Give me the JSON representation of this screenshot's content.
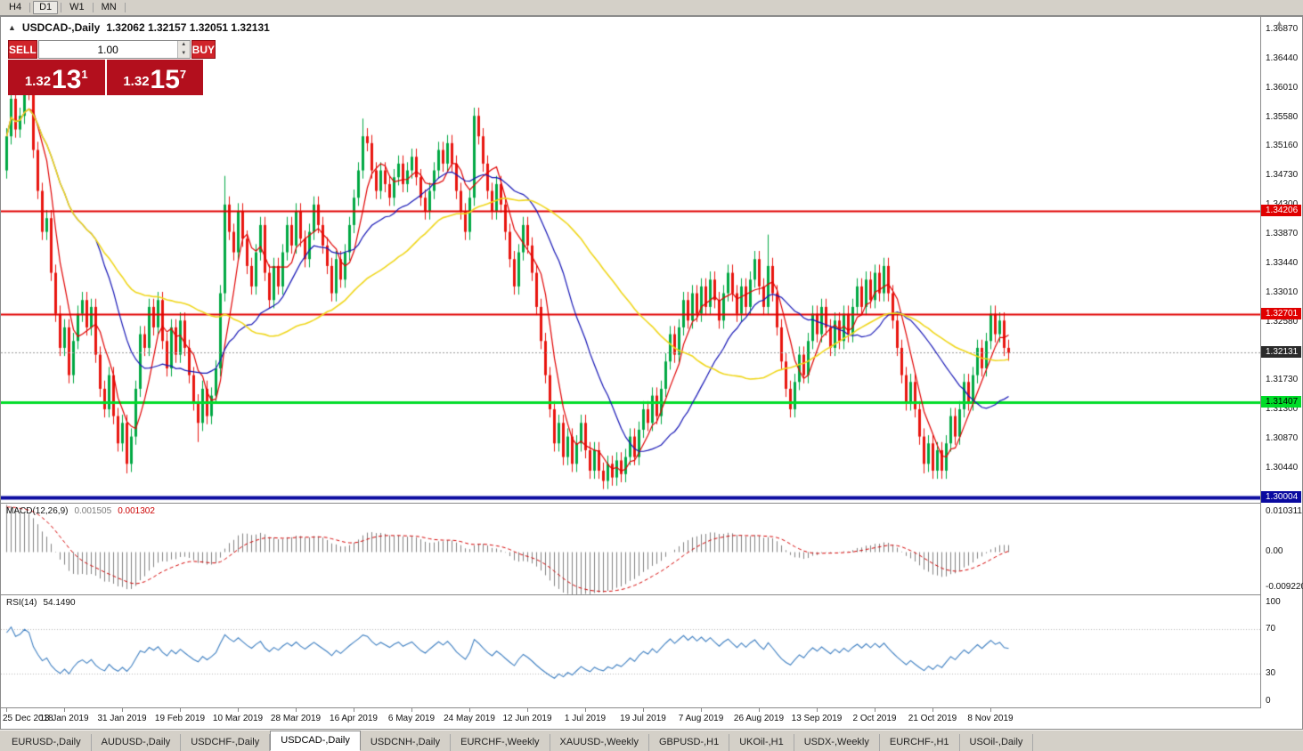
{
  "colors": {
    "app_chrome": "#d4d0c8",
    "panel_red": "#b30f1d",
    "button_red": "#d0242a"
  },
  "toolbar": {
    "timeframes": [
      {
        "label": "H4",
        "active": false
      },
      {
        "label": "D1",
        "active": true
      },
      {
        "label": "W1",
        "active": false
      },
      {
        "label": "MN",
        "active": false
      }
    ]
  },
  "icons": {
    "collapse_arrow": "▲",
    "spin_up": "▲",
    "spin_down": "▼",
    "scale_arrow": "▲"
  },
  "chart_header": {
    "symbol_title": "USDCAD-,Daily",
    "ohlc": "1.32062 1.32157 1.32051 1.32131"
  },
  "one_click": {
    "sell_label": "SELL",
    "buy_label": "BUY",
    "volume": "1.00",
    "sell_price": {
      "base": "1.32",
      "big": "13",
      "sup": "1"
    },
    "buy_price": {
      "base": "1.32",
      "big": "15",
      "sup": "7"
    }
  },
  "price_scale": {
    "ticks": [
      "1.36870",
      "1.36440",
      "1.36010",
      "1.35580",
      "1.35160",
      "1.34730",
      "1.34300",
      "1.33870",
      "1.33440",
      "1.33010",
      "1.32580",
      "1.32150",
      "1.31730",
      "1.31300",
      "1.30870",
      "1.30440"
    ],
    "badges": [
      {
        "text": "1.34206",
        "price": 1.34206,
        "bg": "#e00000",
        "fg": "#ffffff"
      },
      {
        "text": "1.32701",
        "price": 1.32701,
        "bg": "#e00000",
        "fg": "#ffffff"
      },
      {
        "text": "1.32131",
        "price": 1.32131,
        "bg": "#2b2b2b",
        "fg": "#ffffff"
      },
      {
        "text": "1.31407",
        "price": 1.31407,
        "bg": "#00dc28",
        "fg": "#000000"
      },
      {
        "text": "1.30004",
        "price": 1.30004,
        "bg": "#0a0aa0",
        "fg": "#ffffff"
      }
    ]
  },
  "chart_data": [
    {
      "type": "candlestick",
      "title": "USDCAD-,Daily",
      "ylim": [
        1.2993,
        1.3705
      ],
      "current_price": 1.32131,
      "up_color": "#00a843",
      "down_color": "#e8150f",
      "first_open": 1.348,
      "default_wick": 0.0012,
      "closes": [
        1.353,
        1.3585,
        1.354,
        1.356,
        1.361,
        1.3595,
        1.351,
        1.345,
        1.339,
        1.341,
        1.333,
        1.327,
        1.322,
        1.325,
        1.318,
        1.323,
        1.327,
        1.329,
        1.325,
        1.328,
        1.321,
        1.316,
        1.313,
        1.318,
        1.312,
        1.308,
        1.311,
        1.305,
        1.309,
        1.316,
        1.324,
        1.322,
        1.328,
        1.325,
        1.329,
        1.323,
        1.319,
        1.325,
        1.321,
        1.326,
        1.322,
        1.318,
        1.314,
        1.311,
        1.316,
        1.312,
        1.315,
        1.319,
        1.33,
        1.343,
        1.339,
        1.336,
        1.342,
        1.338,
        1.334,
        1.331,
        1.336,
        1.34,
        1.333,
        1.329,
        1.334,
        1.331,
        1.336,
        1.34,
        1.337,
        1.342,
        1.338,
        1.335,
        1.339,
        1.343,
        1.34,
        1.337,
        1.334,
        1.33,
        1.335,
        1.332,
        1.336,
        1.34,
        1.344,
        1.348,
        1.353,
        1.352,
        1.348,
        1.345,
        1.348,
        1.346,
        1.344,
        1.347,
        1.349,
        1.346,
        1.348,
        1.35,
        1.347,
        1.344,
        1.342,
        1.345,
        1.348,
        1.351,
        1.349,
        1.352,
        1.349,
        1.345,
        1.342,
        1.339,
        1.344,
        1.356,
        1.353,
        1.349,
        1.345,
        1.342,
        1.346,
        1.343,
        1.339,
        1.335,
        1.331,
        1.336,
        1.34,
        1.337,
        1.333,
        1.328,
        1.323,
        1.318,
        1.313,
        1.308,
        1.311,
        1.306,
        1.309,
        1.305,
        1.308,
        1.311,
        1.307,
        1.304,
        1.307,
        1.304,
        1.3025,
        1.305,
        1.303,
        1.3055,
        1.3035,
        1.306,
        1.309,
        1.306,
        1.31,
        1.313,
        1.311,
        1.315,
        1.312,
        1.316,
        1.32,
        1.324,
        1.321,
        1.325,
        1.329,
        1.326,
        1.33,
        1.327,
        1.331,
        1.328,
        1.332,
        1.329,
        1.326,
        1.33,
        1.333,
        1.33,
        1.327,
        1.331,
        1.328,
        1.332,
        1.335,
        1.331,
        1.328,
        1.334,
        1.33,
        1.325,
        1.32,
        1.316,
        1.313,
        1.317,
        1.321,
        1.318,
        1.323,
        1.327,
        1.324,
        1.328,
        1.325,
        1.322,
        1.326,
        1.323,
        1.327,
        1.324,
        1.328,
        1.331,
        1.328,
        1.332,
        1.329,
        1.333,
        1.33,
        1.334,
        1.33,
        1.326,
        1.322,
        1.318,
        1.314,
        1.317,
        1.313,
        1.309,
        1.305,
        1.308,
        1.304,
        1.307,
        1.304,
        1.308,
        1.312,
        1.309,
        1.313,
        1.317,
        1.314,
        1.318,
        1.322,
        1.319,
        1.323,
        1.327,
        1.324,
        1.326,
        1.322,
        1.3213
      ],
      "spike_highs": {
        "4": 1.3622,
        "49": 1.3472,
        "80": 1.3556,
        "105": 1.3568,
        "171": 1.3386,
        "197": 1.3352,
        "221": 1.3279
      },
      "spike_lows": {
        "27": 1.3036,
        "43": 1.3082,
        "134": 1.3013,
        "176": 1.312,
        "206": 1.3036,
        "210": 1.3029
      },
      "moving_averages": [
        {
          "period": 6,
          "color": "#e00000"
        },
        {
          "period": 21,
          "color": "#1515b5"
        },
        {
          "period": 50,
          "color": "#efd61c"
        }
      ],
      "levels": [
        {
          "price": 1.34206,
          "color": "#e00000",
          "width": 2
        },
        {
          "price": 1.32701,
          "color": "#e00000",
          "width": 2
        },
        {
          "price": 1.31407,
          "color": "#00dc28",
          "width": 3
        },
        {
          "price": 1.30004,
          "color": "#0a0aa0",
          "width": 4
        }
      ],
      "x_labels": [
        {
          "index": 0,
          "label": "25 Dec 2018"
        },
        {
          "index": 13,
          "label": "13 Jan 2019"
        },
        {
          "index": 26,
          "label": "31 Jan 2019"
        },
        {
          "index": 39,
          "label": "19 Feb 2019"
        },
        {
          "index": 52,
          "label": "10 Mar 2019"
        },
        {
          "index": 65,
          "label": "28 Mar 2019"
        },
        {
          "index": 78,
          "label": "16 Apr 2019"
        },
        {
          "index": 91,
          "label": "6 May 2019"
        },
        {
          "index": 104,
          "label": "24 May 2019"
        },
        {
          "index": 117,
          "label": "12 Jun 2019"
        },
        {
          "index": 130,
          "label": "1 Jul 2019"
        },
        {
          "index": 143,
          "label": "19 Jul 2019"
        },
        {
          "index": 156,
          "label": "7 Aug 2019"
        },
        {
          "index": 169,
          "label": "26 Aug 2019"
        },
        {
          "index": 182,
          "label": "13 Sep 2019"
        },
        {
          "index": 195,
          "label": "2 Oct 2019"
        },
        {
          "index": 208,
          "label": "21 Oct 2019"
        },
        {
          "index": 221,
          "label": "8 Nov 2019"
        }
      ]
    },
    {
      "type": "macd-histogram",
      "label_name": "MACD(12,26,9)",
      "label_values": [
        "0.001505",
        "0.001302"
      ],
      "params": [
        12,
        26,
        9
      ],
      "ylim": [
        -0.0095,
        0.0106
      ],
      "scale_labels": [
        "0.010311",
        "0.00",
        "-0.0092203"
      ],
      "histogram_color": "#808080",
      "signal_color": "#d40000",
      "seed": {
        "ema_fast_offset": -0.0002,
        "ema_slow_offset": -0.0105,
        "signal_init": 0.0098
      }
    },
    {
      "type": "rsi-line",
      "label_name": "RSI(14)",
      "label_value": "54.1490",
      "period": 14,
      "ylim": [
        0,
        100
      ],
      "levels": [
        70,
        30
      ],
      "scale_labels": [
        "100",
        "70",
        "30",
        "0"
      ],
      "line_color": "#3e7fc1",
      "level_color": "#b8b8b8",
      "seed": {
        "avg_gain": 0.0016,
        "avg_loss": 0.0008
      }
    }
  ],
  "tabs": {
    "items": [
      {
        "label": "EURUSD-,Daily",
        "active": false
      },
      {
        "label": "AUDUSD-,Daily",
        "active": false
      },
      {
        "label": "USDCHF-,Daily",
        "active": false
      },
      {
        "label": "USDCAD-,Daily",
        "active": true
      },
      {
        "label": "USDCNH-,Daily",
        "active": false
      },
      {
        "label": "EURCHF-,Weekly",
        "active": false
      },
      {
        "label": "XAUUSD-,Weekly",
        "active": false
      },
      {
        "label": "GBPUSD-,H1",
        "active": false
      },
      {
        "label": "UKOil-,H1",
        "active": false
      },
      {
        "label": "USDX-,Weekly",
        "active": false
      },
      {
        "label": "EURCHF-,H1",
        "active": false
      },
      {
        "label": "USOil-,Daily",
        "active": false
      }
    ]
  }
}
